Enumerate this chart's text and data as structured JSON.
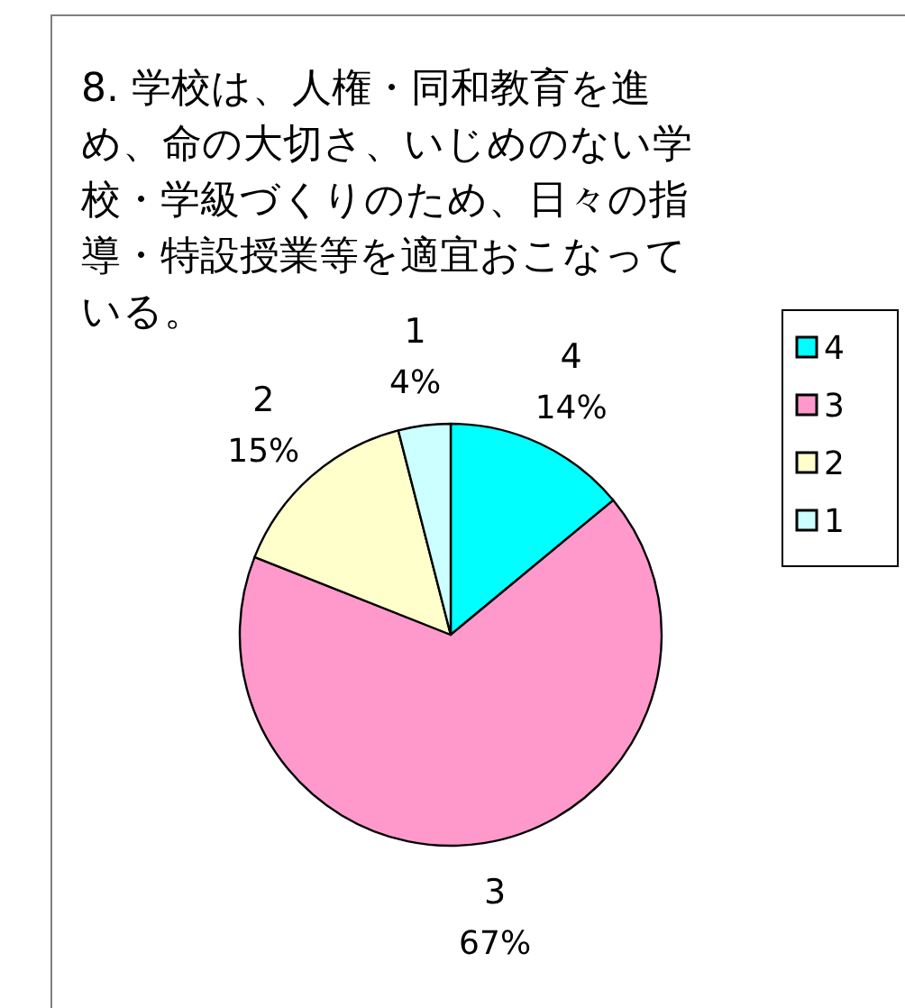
{
  "chart_data": {
    "type": "pie",
    "title": "8. 学校は、人権・同和教育を進め、命の大切さ、いじめのない学校・学級づくりのため、日々の指導・特設授業等を適宜おこなっている。",
    "categories": [
      "4",
      "3",
      "2",
      "1"
    ],
    "values": [
      14,
      67,
      15,
      4
    ],
    "colors": [
      "#00ffff",
      "#ff99cc",
      "#ffffcc",
      "#ccffff"
    ],
    "value_labels": [
      "14%",
      "67%",
      "15%",
      "4%"
    ],
    "legend": "right"
  }
}
